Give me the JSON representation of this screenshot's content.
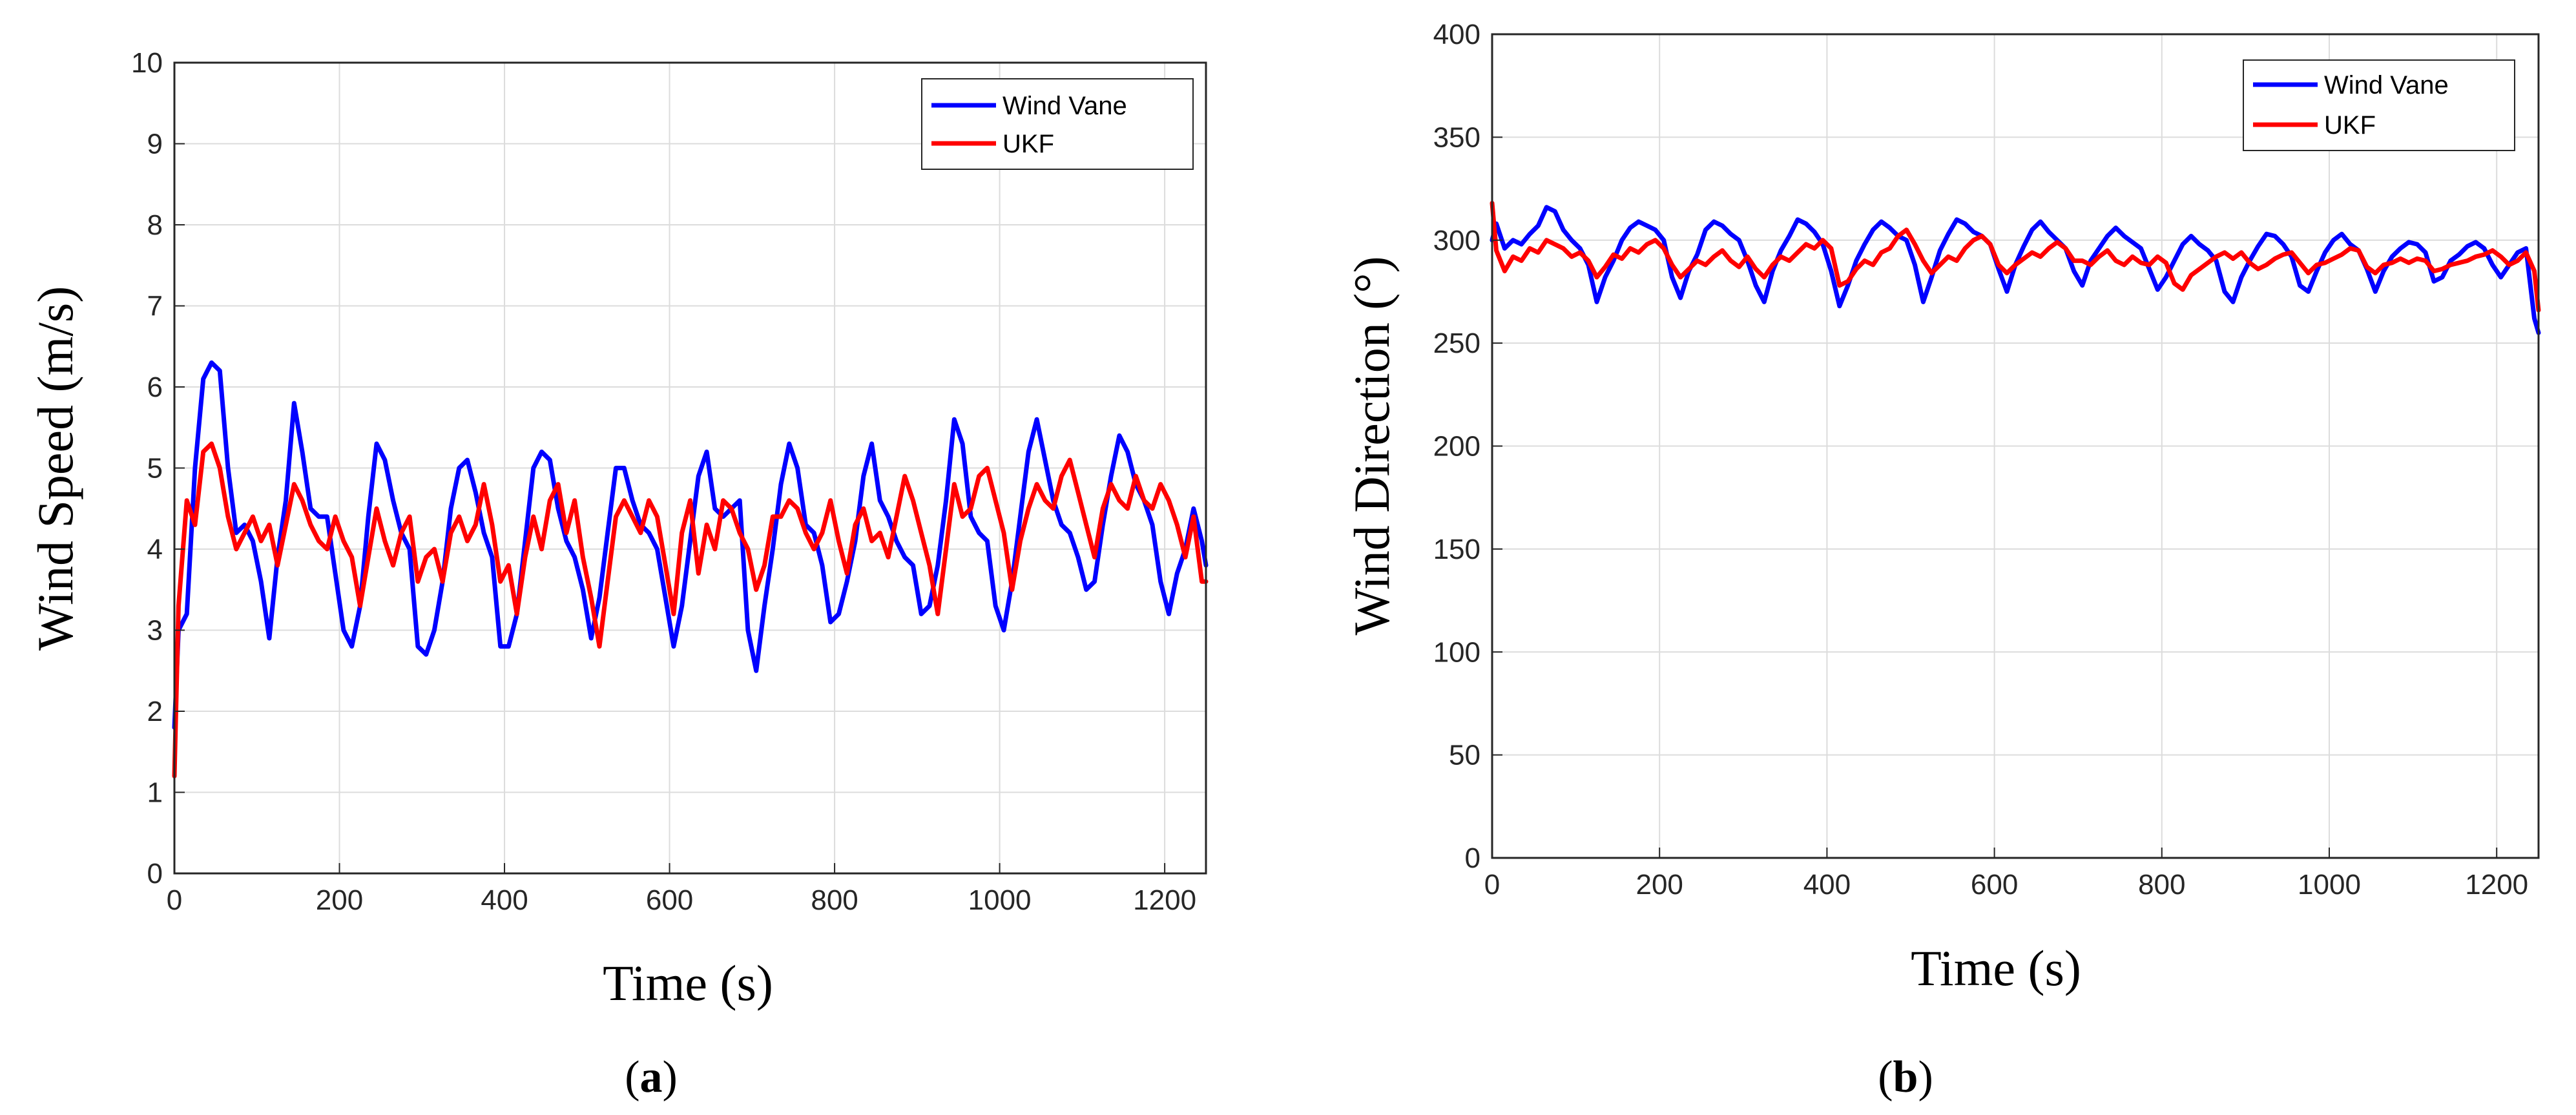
{
  "chart_data": [
    {
      "type": "line",
      "panel_label": "a",
      "title": "",
      "xlabel": "Time (s)",
      "ylabel": "Wind Speed (m/s)",
      "xlim": [
        0,
        1250
      ],
      "ylim": [
        0,
        10
      ],
      "xticks": [
        0,
        200,
        400,
        600,
        800,
        1000,
        1200
      ],
      "yticks": [
        0,
        1,
        2,
        3,
        4,
        5,
        6,
        7,
        8,
        9,
        10
      ],
      "grid": true,
      "legend": "top-right",
      "series": [
        {
          "name": "Wind Vane",
          "color": "#0000ff",
          "x": [
            0,
            5,
            15,
            25,
            35,
            45,
            55,
            65,
            75,
            85,
            95,
            105,
            115,
            125,
            135,
            145,
            155,
            165,
            175,
            185,
            195,
            205,
            215,
            225,
            235,
            245,
            255,
            265,
            275,
            285,
            295,
            305,
            315,
            325,
            335,
            345,
            355,
            365,
            375,
            385,
            395,
            405,
            415,
            425,
            435,
            445,
            455,
            465,
            475,
            485,
            495,
            505,
            515,
            525,
            535,
            545,
            555,
            565,
            575,
            585,
            595,
            605,
            615,
            625,
            635,
            645,
            655,
            665,
            675,
            685,
            695,
            705,
            715,
            725,
            735,
            745,
            755,
            765,
            775,
            785,
            795,
            805,
            815,
            825,
            835,
            845,
            855,
            865,
            875,
            885,
            895,
            905,
            915,
            925,
            935,
            945,
            955,
            965,
            975,
            985,
            995,
            1005,
            1015,
            1025,
            1035,
            1045,
            1055,
            1065,
            1075,
            1085,
            1095,
            1105,
            1115,
            1125,
            1135,
            1145,
            1155,
            1165,
            1175,
            1185,
            1195,
            1205,
            1215,
            1225,
            1235,
            1245,
            1250
          ],
          "y": [
            1.8,
            3.0,
            3.2,
            5.0,
            6.1,
            6.3,
            6.2,
            5.0,
            4.2,
            4.3,
            4.1,
            3.6,
            2.9,
            3.9,
            4.6,
            5.8,
            5.2,
            4.5,
            4.4,
            4.4,
            3.7,
            3.0,
            2.8,
            3.3,
            4.4,
            5.3,
            5.1,
            4.6,
            4.2,
            4.0,
            2.8,
            2.7,
            3.0,
            3.6,
            4.5,
            5.0,
            5.1,
            4.7,
            4.2,
            3.9,
            2.8,
            2.8,
            3.2,
            4.1,
            5.0,
            5.2,
            5.1,
            4.5,
            4.1,
            3.9,
            3.5,
            2.9,
            3.4,
            4.2,
            5.0,
            5.0,
            4.6,
            4.3,
            4.2,
            4.0,
            3.4,
            2.8,
            3.3,
            4.1,
            4.9,
            5.2,
            4.5,
            4.4,
            4.5,
            4.6,
            3.0,
            2.5,
            3.3,
            4.0,
            4.8,
            5.3,
            5.0,
            4.3,
            4.2,
            3.8,
            3.1,
            3.2,
            3.6,
            4.1,
            4.9,
            5.3,
            4.6,
            4.4,
            4.1,
            3.9,
            3.8,
            3.2,
            3.3,
            3.8,
            4.6,
            5.6,
            5.3,
            4.4,
            4.2,
            4.1,
            3.3,
            3.0,
            3.6,
            4.4,
            5.2,
            5.6,
            5.1,
            4.6,
            4.3,
            4.2,
            3.9,
            3.5,
            3.6,
            4.3,
            4.9,
            5.4,
            5.2,
            4.8,
            4.6,
            4.3,
            3.6,
            3.2,
            3.7,
            4.0,
            4.5,
            4.1,
            3.8
          ]
        },
        {
          "name": "UKF",
          "color": "#ff0000",
          "x": [
            0,
            5,
            15,
            25,
            35,
            45,
            55,
            65,
            75,
            85,
            95,
            105,
            115,
            125,
            135,
            145,
            155,
            165,
            175,
            185,
            195,
            205,
            215,
            225,
            235,
            245,
            255,
            265,
            275,
            285,
            295,
            305,
            315,
            325,
            335,
            345,
            355,
            365,
            375,
            385,
            395,
            405,
            415,
            425,
            435,
            445,
            455,
            465,
            475,
            485,
            495,
            505,
            515,
            525,
            535,
            545,
            555,
            565,
            575,
            585,
            595,
            605,
            615,
            625,
            635,
            645,
            655,
            665,
            675,
            685,
            695,
            705,
            715,
            725,
            735,
            745,
            755,
            765,
            775,
            785,
            795,
            805,
            815,
            825,
            835,
            845,
            855,
            865,
            875,
            885,
            895,
            905,
            915,
            925,
            935,
            945,
            955,
            965,
            975,
            985,
            995,
            1005,
            1015,
            1025,
            1035,
            1045,
            1055,
            1065,
            1075,
            1085,
            1095,
            1105,
            1115,
            1125,
            1135,
            1145,
            1155,
            1165,
            1175,
            1185,
            1195,
            1205,
            1215,
            1225,
            1235,
            1245,
            1250
          ],
          "y": [
            1.2,
            3.3,
            4.6,
            4.3,
            5.2,
            5.3,
            5.0,
            4.4,
            4.0,
            4.2,
            4.4,
            4.1,
            4.3,
            3.8,
            4.3,
            4.8,
            4.6,
            4.3,
            4.1,
            4.0,
            4.4,
            4.1,
            3.9,
            3.3,
            3.9,
            4.5,
            4.1,
            3.8,
            4.2,
            4.4,
            3.6,
            3.9,
            4.0,
            3.6,
            4.2,
            4.4,
            4.1,
            4.3,
            4.8,
            4.3,
            3.6,
            3.8,
            3.2,
            3.9,
            4.4,
            4.0,
            4.6,
            4.8,
            4.2,
            4.6,
            3.9,
            3.4,
            2.8,
            3.6,
            4.4,
            4.6,
            4.4,
            4.2,
            4.6,
            4.4,
            3.8,
            3.2,
            4.2,
            4.6,
            3.7,
            4.3,
            4.0,
            4.6,
            4.5,
            4.2,
            4.0,
            3.5,
            3.8,
            4.4,
            4.4,
            4.6,
            4.5,
            4.2,
            4.0,
            4.2,
            4.6,
            4.1,
            3.7,
            4.3,
            4.5,
            4.1,
            4.2,
            3.9,
            4.4,
            4.9,
            4.6,
            4.2,
            3.8,
            3.2,
            4.0,
            4.8,
            4.4,
            4.5,
            4.9,
            5.0,
            4.6,
            4.2,
            3.5,
            4.1,
            4.5,
            4.8,
            4.6,
            4.5,
            4.9,
            5.1,
            4.7,
            4.3,
            3.9,
            4.5,
            4.8,
            4.6,
            4.5,
            4.9,
            4.6,
            4.5,
            4.8,
            4.6,
            4.3,
            3.9,
            4.4,
            3.6,
            3.6
          ]
        }
      ]
    },
    {
      "type": "line",
      "panel_label": "b",
      "title": "",
      "xlabel": "Time (s)",
      "ylabel": "Wind Direction (°)",
      "xlim": [
        0,
        1250
      ],
      "ylim": [
        0,
        400
      ],
      "xticks": [
        0,
        200,
        400,
        600,
        800,
        1000,
        1200
      ],
      "yticks": [
        0,
        50,
        100,
        150,
        200,
        250,
        300,
        350,
        400
      ],
      "grid": true,
      "legend": "top-right",
      "series": [
        {
          "name": "Wind Vane",
          "color": "#0000ff",
          "x": [
            0,
            5,
            15,
            25,
            35,
            45,
            55,
            65,
            75,
            85,
            95,
            105,
            115,
            125,
            135,
            145,
            155,
            165,
            175,
            185,
            195,
            205,
            215,
            225,
            235,
            245,
            255,
            265,
            275,
            285,
            295,
            305,
            315,
            325,
            335,
            345,
            355,
            365,
            375,
            385,
            395,
            405,
            415,
            425,
            435,
            445,
            455,
            465,
            475,
            485,
            495,
            505,
            515,
            525,
            535,
            545,
            555,
            565,
            575,
            585,
            595,
            605,
            615,
            625,
            635,
            645,
            655,
            665,
            675,
            685,
            695,
            705,
            715,
            725,
            735,
            745,
            755,
            765,
            775,
            785,
            795,
            805,
            815,
            825,
            835,
            845,
            855,
            865,
            875,
            885,
            895,
            905,
            915,
            925,
            935,
            945,
            955,
            965,
            975,
            985,
            995,
            1005,
            1015,
            1025,
            1035,
            1045,
            1055,
            1065,
            1075,
            1085,
            1095,
            1105,
            1115,
            1125,
            1135,
            1145,
            1155,
            1165,
            1175,
            1185,
            1195,
            1205,
            1215,
            1225,
            1235,
            1245,
            1250
          ],
          "y": [
            300,
            308,
            296,
            300,
            298,
            303,
            307,
            316,
            314,
            305,
            300,
            296,
            288,
            270,
            282,
            290,
            300,
            306,
            309,
            307,
            305,
            300,
            282,
            272,
            285,
            293,
            305,
            309,
            307,
            303,
            300,
            290,
            278,
            270,
            285,
            295,
            302,
            310,
            308,
            304,
            298,
            285,
            268,
            278,
            290,
            298,
            305,
            309,
            306,
            302,
            300,
            288,
            270,
            282,
            295,
            303,
            310,
            308,
            304,
            302,
            298,
            286,
            275,
            288,
            297,
            305,
            309,
            304,
            300,
            296,
            285,
            278,
            290,
            296,
            302,
            306,
            302,
            299,
            296,
            286,
            276,
            282,
            290,
            298,
            302,
            298,
            295,
            290,
            275,
            270,
            282,
            290,
            297,
            303,
            302,
            298,
            292,
            278,
            275,
            285,
            294,
            300,
            303,
            298,
            295,
            286,
            275,
            285,
            292,
            296,
            299,
            298,
            294,
            280,
            282,
            290,
            293,
            297,
            299,
            296,
            288,
            282,
            288,
            294,
            296,
            262,
            255
          ]
        },
        {
          "name": "UKF",
          "color": "#ff0000",
          "x": [
            0,
            5,
            15,
            25,
            35,
            45,
            55,
            65,
            75,
            85,
            95,
            105,
            115,
            125,
            135,
            145,
            155,
            165,
            175,
            185,
            195,
            205,
            215,
            225,
            235,
            245,
            255,
            265,
            275,
            285,
            295,
            305,
            315,
            325,
            335,
            345,
            355,
            365,
            375,
            385,
            395,
            405,
            415,
            425,
            435,
            445,
            455,
            465,
            475,
            485,
            495,
            505,
            515,
            525,
            535,
            545,
            555,
            565,
            575,
            585,
            595,
            605,
            615,
            625,
            635,
            645,
            655,
            665,
            675,
            685,
            695,
            705,
            715,
            725,
            735,
            745,
            755,
            765,
            775,
            785,
            795,
            805,
            815,
            825,
            835,
            845,
            855,
            865,
            875,
            885,
            895,
            905,
            915,
            925,
            935,
            945,
            955,
            965,
            975,
            985,
            995,
            1005,
            1015,
            1025,
            1035,
            1045,
            1055,
            1065,
            1075,
            1085,
            1095,
            1105,
            1115,
            1125,
            1135,
            1145,
            1155,
            1165,
            1175,
            1185,
            1195,
            1205,
            1215,
            1225,
            1235,
            1245,
            1250
          ],
          "y": [
            318,
            295,
            285,
            292,
            290,
            296,
            294,
            300,
            298,
            296,
            292,
            294,
            290,
            282,
            287,
            293,
            291,
            296,
            294,
            298,
            300,
            296,
            288,
            282,
            286,
            290,
            288,
            292,
            295,
            290,
            287,
            292,
            286,
            282,
            288,
            292,
            290,
            294,
            298,
            296,
            300,
            296,
            278,
            280,
            286,
            290,
            288,
            294,
            296,
            302,
            305,
            298,
            290,
            284,
            288,
            292,
            290,
            296,
            300,
            302,
            298,
            288,
            284,
            288,
            291,
            294,
            292,
            296,
            299,
            296,
            290,
            290,
            288,
            292,
            295,
            290,
            288,
            292,
            289,
            288,
            292,
            289,
            279,
            276,
            283,
            286,
            289,
            292,
            294,
            291,
            294,
            289,
            286,
            288,
            291,
            293,
            294,
            289,
            284,
            288,
            289,
            291,
            293,
            296,
            295,
            287,
            284,
            288,
            289,
            291,
            289,
            291,
            290,
            285,
            286,
            288,
            289,
            290,
            292,
            293,
            295,
            292,
            288,
            290,
            294,
            285,
            266
          ]
        }
      ]
    }
  ]
}
